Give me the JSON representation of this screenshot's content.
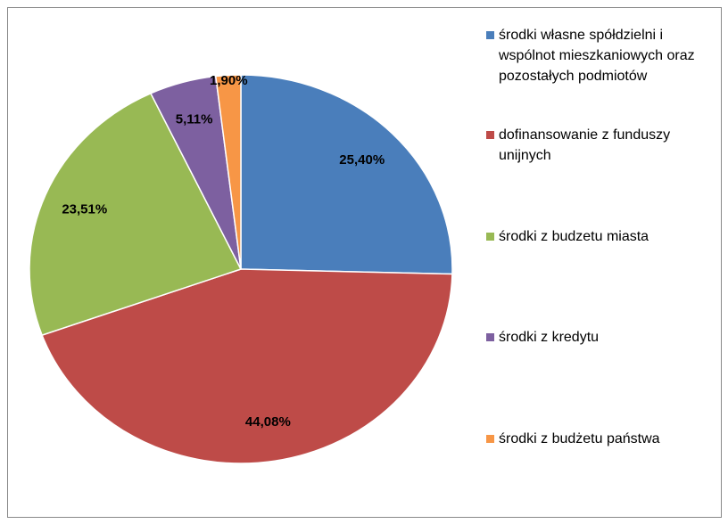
{
  "chart_data": {
    "type": "pie",
    "categories": [
      "środki własne spółdzielni i wspólnot mieszkaniowych oraz pozostałych podmiotów",
      "dofinansowanie z funduszy unijnych",
      "środki z budzetu miasta",
      "środki z kredytu",
      "środki z budżetu państwa"
    ],
    "values": [
      25.4,
      44.08,
      23.51,
      5.11,
      1.9
    ],
    "value_labels": [
      "25,40%",
      "44,08%",
      "23,51%",
      "5,11%",
      "1,90%"
    ],
    "colors": [
      "#4a7ebb",
      "#be4b48",
      "#98b954",
      "#7d60a0",
      "#f79646"
    ],
    "legend": "right"
  }
}
